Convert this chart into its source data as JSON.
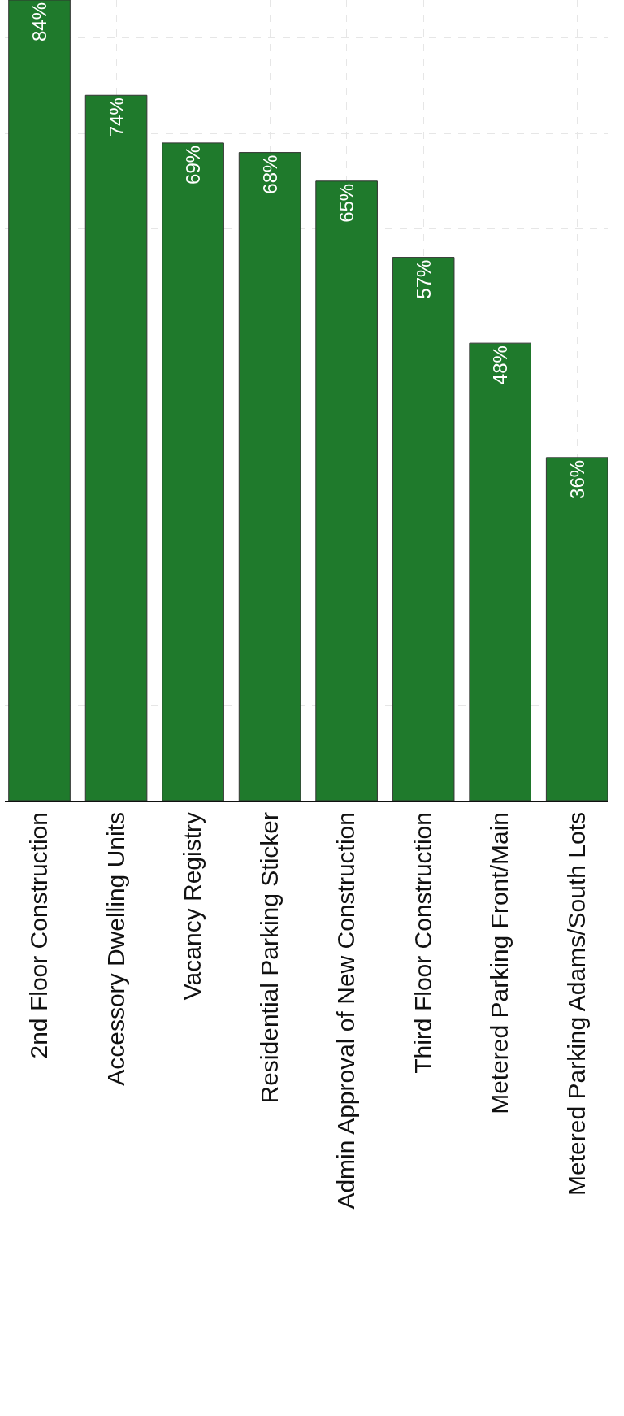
{
  "chart_data": {
    "type": "bar",
    "categories": [
      "2nd Floor Construction",
      "Accessory Dwelling Units",
      "Vacancy Registry",
      "Residential Parking Sticker",
      "Admin Approval of New Construction",
      "Third Floor Construction",
      "Metered Parking Front/Main",
      "Metered Parking Adams/South Lots"
    ],
    "values": [
      84,
      74,
      69,
      68,
      65,
      57,
      48,
      36
    ],
    "value_labels": [
      "84%",
      "74%",
      "69%",
      "68%",
      "65%",
      "57%",
      "48%",
      "36%"
    ],
    "color": "#1f7a2c",
    "ylim": [
      0,
      84
    ],
    "yticks": [
      {
        "value": 10,
        "label": null
      },
      {
        "value": 20,
        "label": null
      },
      {
        "value": 30,
        "label": null
      },
      {
        "value": 40,
        "label": null
      },
      {
        "value": 50,
        "label": null
      },
      {
        "value": 60,
        "label": null
      },
      {
        "value": 70,
        "label": null
      },
      {
        "value": 80,
        "label": null
      }
    ],
    "tick_labels": "x",
    "grid": true
  }
}
